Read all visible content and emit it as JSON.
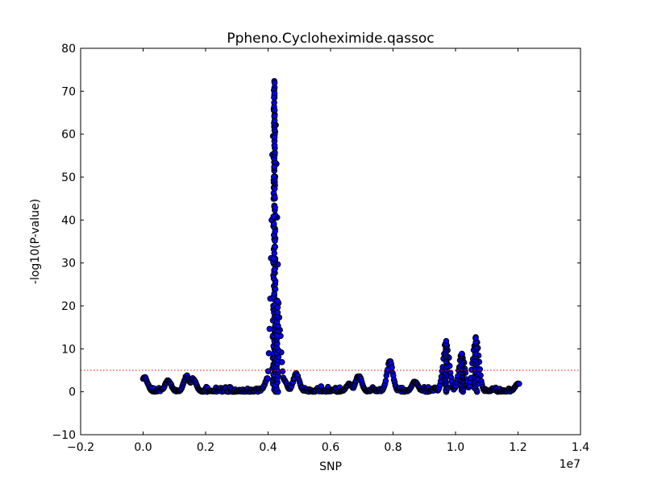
{
  "chart_data": {
    "type": "scatter",
    "title": "Ppheno.Cycloheximide.qassoc",
    "xlabel": "SNP",
    "ylabel": "-log10(P-value)",
    "x_offset_label": "1e7",
    "xlim": [
      -0.2,
      1.4
    ],
    "ylim": [
      -10,
      80
    ],
    "x_ticks": [
      -0.2,
      0.0,
      0.2,
      0.4,
      0.6,
      0.8,
      1.0,
      1.2,
      1.4
    ],
    "x_tick_labels": [
      "−0.2",
      "0.0",
      "0.2",
      "0.4",
      "0.6",
      "0.8",
      "1.0",
      "1.2",
      "1.4"
    ],
    "y_ticks": [
      -10,
      0,
      10,
      20,
      30,
      40,
      50,
      60,
      70,
      80
    ],
    "y_tick_labels": [
      "−10",
      "0",
      "10",
      "20",
      "30",
      "40",
      "50",
      "60",
      "70",
      "80"
    ],
    "threshold": {
      "y": 5,
      "color": "#ff0000",
      "style": "dotted"
    },
    "grid": false,
    "marker_fill": "#0000ff",
    "marker_edge": "#000000",
    "peaks": [
      {
        "x": 0.005,
        "y": 3.5
      },
      {
        "x": 0.08,
        "y": 2.8
      },
      {
        "x": 0.14,
        "y": 3.8
      },
      {
        "x": 0.16,
        "y": 3.2
      },
      {
        "x": 0.4,
        "y": 3.5
      },
      {
        "x": 0.42,
        "y": 74
      },
      {
        "x": 0.43,
        "y": 22
      },
      {
        "x": 0.45,
        "y": 3.0
      },
      {
        "x": 0.49,
        "y": 4.5
      },
      {
        "x": 0.66,
        "y": 2.0
      },
      {
        "x": 0.69,
        "y": 4.0
      },
      {
        "x": 0.79,
        "y": 7.3
      },
      {
        "x": 0.87,
        "y": 2.5
      },
      {
        "x": 0.97,
        "y": 12.0
      },
      {
        "x": 1.02,
        "y": 9.2
      },
      {
        "x": 1.065,
        "y": 13.0
      },
      {
        "x": 1.2,
        "y": 2.0
      }
    ]
  }
}
